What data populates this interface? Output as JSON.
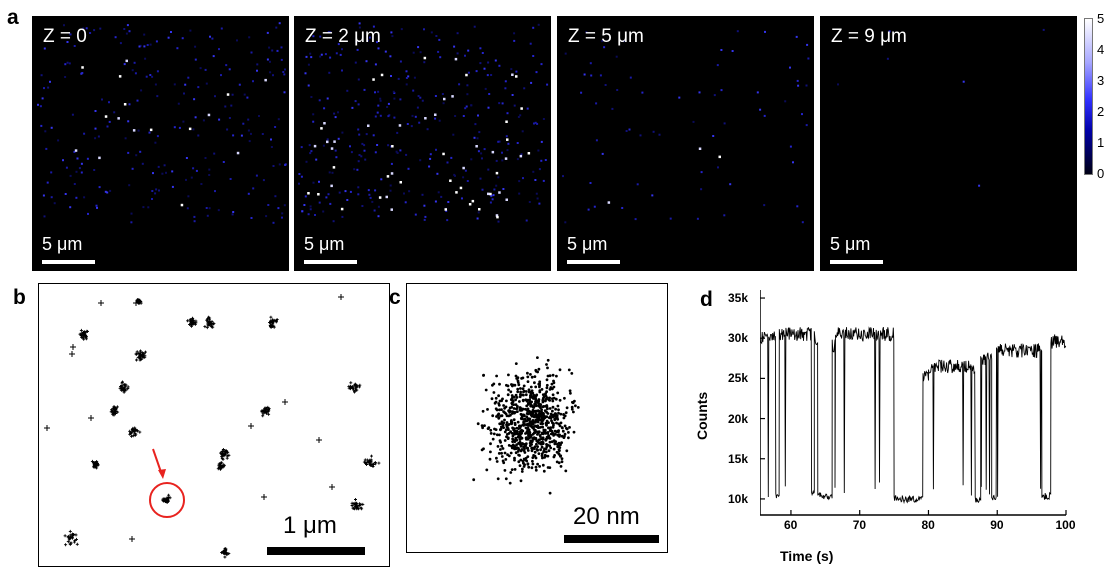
{
  "panel_labels": {
    "a": "a",
    "b": "b",
    "c": "c",
    "d": "d"
  },
  "panel_a": {
    "panels": [
      {
        "z_label": "Z = 0",
        "scale_label": "5 μm"
      },
      {
        "z_label": "Z = 2 μm",
        "scale_label": "5 μm"
      },
      {
        "z_label": "Z = 5 μm",
        "scale_label": "5 μm"
      },
      {
        "z_label": "Z = 9 μm",
        "scale_label": "5 μm"
      }
    ],
    "colorbar": {
      "ticks": [
        "5",
        "4",
        "3",
        "2",
        "1",
        "0"
      ],
      "colors": [
        "#ffffff",
        "#3131ff",
        "#000000"
      ]
    }
  },
  "panel_b": {
    "scale_label": "1 μm",
    "highlight_color": "#e8231f"
  },
  "panel_c": {
    "scale_label": "20 nm"
  },
  "chart_data": {
    "type": "line",
    "xlabel": "Time (s)",
    "ylabel": "Counts",
    "xlim": [
      55.5,
      100
    ],
    "ylim": [
      8000,
      36000
    ],
    "x_ticks": [
      60,
      70,
      80,
      90,
      100
    ],
    "x_tick_labels": [
      "60",
      "70",
      "80",
      "90",
      "100"
    ],
    "y_ticks": [
      10000,
      15000,
      20000,
      25000,
      30000,
      35000
    ],
    "y_tick_labels": [
      "10k",
      "15k",
      "20k",
      "25k",
      "30k",
      "35k"
    ],
    "levels": {
      "high": 30000,
      "mid": 26000,
      "low": 10200
    },
    "segments": [
      [
        55.5,
        57.8,
        30000
      ],
      [
        57.8,
        58.3,
        10300
      ],
      [
        58.3,
        63.0,
        30500
      ],
      [
        63.0,
        63.4,
        10500
      ],
      [
        63.4,
        63.9,
        30000
      ],
      [
        63.9,
        66.0,
        10400
      ],
      [
        66.0,
        66.4,
        29000
      ],
      [
        66.4,
        75.0,
        30500
      ],
      [
        75.0,
        79.2,
        10000
      ],
      [
        79.2,
        80.0,
        25500
      ],
      [
        80.0,
        86.8,
        26500
      ],
      [
        86.8,
        87.6,
        10000
      ],
      [
        87.6,
        89.2,
        27500
      ],
      [
        89.2,
        89.9,
        10000
      ],
      [
        89.9,
        96.5,
        28500
      ],
      [
        96.5,
        97.8,
        10300
      ],
      [
        97.8,
        100,
        29600
      ]
    ]
  }
}
